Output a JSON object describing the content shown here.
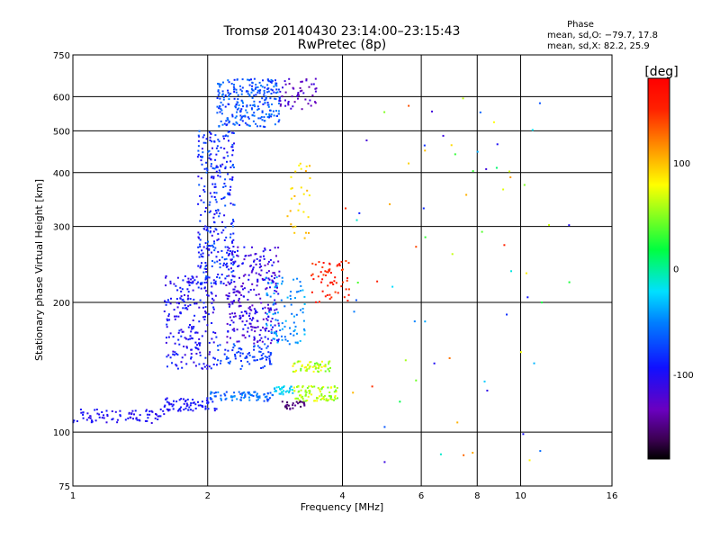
{
  "chart_data": {
    "type": "scatter",
    "title": "Tromsø 20140430 23:14:00–23:15:43",
    "subtitle": "RwPretec (8p)",
    "xlabel": "Frequency [MHz]",
    "ylabel": "Stationary phase Virtual Height [km]",
    "x_scale": "log",
    "y_scale": "log",
    "xlim": [
      1,
      16
    ],
    "ylim": [
      75,
      750
    ],
    "x_ticks": [
      1,
      2,
      4,
      6,
      8,
      10,
      16
    ],
    "y_ticks": [
      75,
      100,
      200,
      300,
      400,
      500,
      600,
      750
    ],
    "grid": true,
    "stats": {
      "heading": "Phase",
      "line1": "mean, sd,O: −79.7, 17.8",
      "line2": "mean, sd,X:  82.2, 25.9"
    },
    "colorbar": {
      "unit_label": "[deg]",
      "range": [
        -180,
        180
      ],
      "ticks": [
        100,
        0,
        -100
      ],
      "colormap": "rainbow (black–purple–blue–cyan–green–yellow–orange–red)"
    },
    "clusters": [
      {
        "name": "trace-low-1",
        "f": [
          1.0,
          1.6
        ],
        "h": [
          105,
          113
        ],
        "phase": [
          -110,
          -90
        ],
        "n": 80
      },
      {
        "name": "trace-low-2",
        "f": [
          1.6,
          2.1
        ],
        "h": [
          112,
          120
        ],
        "phase": [
          -105,
          -85
        ],
        "n": 70
      },
      {
        "name": "trace-low-3",
        "f": [
          2.0,
          2.8
        ],
        "h": [
          118,
          124
        ],
        "phase": [
          -80,
          -40
        ],
        "n": 80
      },
      {
        "name": "trace-low-4",
        "f": [
          2.8,
          3.1
        ],
        "h": [
          122,
          128
        ],
        "phase": [
          -40,
          -10
        ],
        "n": 30
      },
      {
        "name": "arc-lower",
        "f": [
          3.1,
          3.9
        ],
        "h": [
          118,
          128
        ],
        "phase": [
          40,
          80
        ],
        "n": 90
      },
      {
        "name": "arc-upper",
        "f": [
          3.1,
          3.8
        ],
        "h": [
          138,
          146
        ],
        "phase": [
          40,
          85
        ],
        "n": 60
      },
      {
        "name": "arc-purple",
        "f": [
          2.9,
          3.3
        ],
        "h": [
          113,
          118
        ],
        "phase": [
          -160,
          -140
        ],
        "n": 25
      },
      {
        "name": "wedge-main-1",
        "f": [
          1.6,
          2.1
        ],
        "h": [
          140,
          230
        ],
        "phase": [
          -115,
          -80
        ],
        "n": 220
      },
      {
        "name": "wedge-main-2",
        "f": [
          1.9,
          2.3
        ],
        "h": [
          220,
          500
        ],
        "phase": [
          -110,
          -60
        ],
        "n": 300
      },
      {
        "name": "wedge-main-3",
        "f": [
          2.2,
          2.9
        ],
        "h": [
          160,
          270
        ],
        "phase": [
          -130,
          -90
        ],
        "n": 280
      },
      {
        "name": "wedge-main-4",
        "f": [
          2.1,
          2.8
        ],
        "h": [
          140,
          160
        ],
        "phase": [
          -90,
          -60
        ],
        "n": 80
      },
      {
        "name": "cap-top",
        "f": [
          2.1,
          2.9
        ],
        "h": [
          510,
          660
        ],
        "phase": [
          -90,
          -50
        ],
        "n": 260
      },
      {
        "name": "cap-right",
        "f": [
          2.9,
          3.5
        ],
        "h": [
          560,
          660
        ],
        "phase": [
          -140,
          -110
        ],
        "n": 50
      },
      {
        "name": "mid-cyan",
        "f": [
          2.7,
          3.3
        ],
        "h": [
          160,
          230
        ],
        "phase": [
          -60,
          -30
        ],
        "n": 90
      },
      {
        "name": "mid-orange",
        "f": [
          3.4,
          4.2
        ],
        "h": [
          200,
          250
        ],
        "phase": [
          140,
          170
        ],
        "n": 60
      },
      {
        "name": "tail-top",
        "f": [
          3.0,
          3.4
        ],
        "h": [
          280,
          420
        ],
        "phase": [
          80,
          110
        ],
        "n": 30
      },
      {
        "name": "scatter-sparse",
        "f": [
          4.0,
          13.0
        ],
        "h": [
          85,
          620
        ],
        "phase": [
          -120,
          160
        ],
        "n": 70
      }
    ]
  }
}
